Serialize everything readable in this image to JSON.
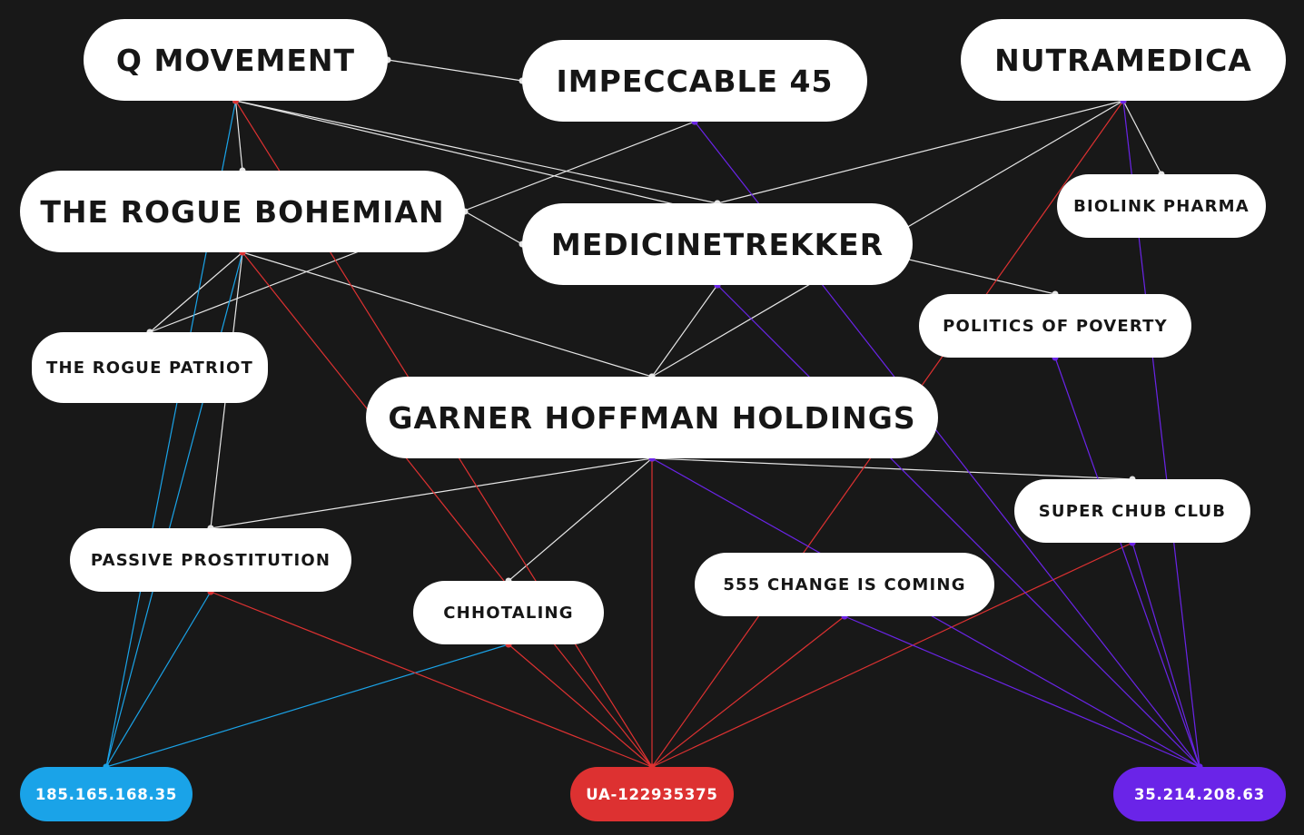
{
  "colors": {
    "background": "#181818",
    "node_fill": "#ffffff",
    "node_text": "#161616",
    "edge_white": "#e6e6e6",
    "ip_blue": "#1aa3e8",
    "analytics_red": "#dd3131",
    "ip_purple": "#6a24e8"
  },
  "nodes": [
    {
      "id": "q_movement",
      "label": "Q MOVEMENT"
    },
    {
      "id": "impeccable_45",
      "label": "IMPECCABLE 45"
    },
    {
      "id": "nutramedica",
      "label": "NUTRAMEDICA"
    },
    {
      "id": "rogue_bohemian",
      "label": "THE ROGUE BOHEMIAN"
    },
    {
      "id": "medicinetrekker",
      "label": "MEDICINETREKKER"
    },
    {
      "id": "biolink_pharma",
      "label": "BIOLINK PHARMA"
    },
    {
      "id": "politics_of_poverty",
      "label": "POLITICS OF POVERTY"
    },
    {
      "id": "rogue_patriot",
      "label": "THE ROGUE PATRIOT"
    },
    {
      "id": "garner_hoffman",
      "label": "GARNER HOFFMAN HOLDINGS"
    },
    {
      "id": "super_chub_club",
      "label": "SUPER CHUB CLUB"
    },
    {
      "id": "passive_prostitution",
      "label": "PASSIVE PROSTITUTION"
    },
    {
      "id": "chhotaling",
      "label": "CHHOTALING"
    },
    {
      "id": "change_is_coming",
      "label": "555 CHANGE IS COMING"
    },
    {
      "id": "ip_blue",
      "label": "185.165.168.35"
    },
    {
      "id": "ua_code",
      "label": "UA-122935375"
    },
    {
      "id": "ip_purple",
      "label": "35.214.208.63"
    }
  ],
  "edges": [
    {
      "from": "q_movement",
      "to": "impeccable_45",
      "kind": "white"
    },
    {
      "from": "q_movement",
      "to": "medicinetrekker",
      "kind": "white"
    },
    {
      "from": "q_movement",
      "to": "politics_of_poverty",
      "kind": "white"
    },
    {
      "from": "q_movement",
      "to": "rogue_bohemian",
      "kind": "white"
    },
    {
      "from": "rogue_bohemian",
      "to": "medicinetrekker",
      "kind": "white"
    },
    {
      "from": "rogue_bohemian",
      "to": "garner_hoffman",
      "kind": "white"
    },
    {
      "from": "rogue_bohemian",
      "to": "rogue_patriot",
      "kind": "white"
    },
    {
      "from": "rogue_bohemian",
      "to": "passive_prostitution",
      "kind": "white"
    },
    {
      "from": "impeccable_45",
      "to": "rogue_patriot",
      "kind": "white"
    },
    {
      "from": "nutramedica",
      "to": "medicinetrekker",
      "kind": "white"
    },
    {
      "from": "nutramedica",
      "to": "garner_hoffman",
      "kind": "white"
    },
    {
      "from": "nutramedica",
      "to": "biolink_pharma",
      "kind": "white"
    },
    {
      "from": "medicinetrekker",
      "to": "garner_hoffman",
      "kind": "white"
    },
    {
      "from": "garner_hoffman",
      "to": "passive_prostitution",
      "kind": "white"
    },
    {
      "from": "garner_hoffman",
      "to": "chhotaling",
      "kind": "white"
    },
    {
      "from": "garner_hoffman",
      "to": "super_chub_club",
      "kind": "white"
    },
    {
      "from": "q_movement",
      "to": "ip_blue",
      "kind": "blue"
    },
    {
      "from": "rogue_bohemian",
      "to": "ip_blue",
      "kind": "blue"
    },
    {
      "from": "passive_prostitution",
      "to": "ip_blue",
      "kind": "blue"
    },
    {
      "from": "chhotaling",
      "to": "ip_blue",
      "kind": "blue"
    },
    {
      "from": "q_movement",
      "to": "ua_code",
      "kind": "red"
    },
    {
      "from": "rogue_bohemian",
      "to": "ua_code",
      "kind": "red"
    },
    {
      "from": "nutramedica",
      "to": "ua_code",
      "kind": "red"
    },
    {
      "from": "garner_hoffman",
      "to": "ua_code",
      "kind": "red"
    },
    {
      "from": "passive_prostitution",
      "to": "ua_code",
      "kind": "red"
    },
    {
      "from": "chhotaling",
      "to": "ua_code",
      "kind": "red"
    },
    {
      "from": "change_is_coming",
      "to": "ua_code",
      "kind": "red"
    },
    {
      "from": "super_chub_club",
      "to": "ua_code",
      "kind": "red"
    },
    {
      "from": "impeccable_45",
      "to": "ip_purple",
      "kind": "purple"
    },
    {
      "from": "nutramedica",
      "to": "ip_purple",
      "kind": "purple"
    },
    {
      "from": "medicinetrekker",
      "to": "ip_purple",
      "kind": "purple"
    },
    {
      "from": "politics_of_poverty",
      "to": "ip_purple",
      "kind": "purple"
    },
    {
      "from": "garner_hoffman",
      "to": "ip_purple",
      "kind": "purple"
    },
    {
      "from": "change_is_coming",
      "to": "ip_purple",
      "kind": "purple"
    },
    {
      "from": "super_chub_club",
      "to": "ip_purple",
      "kind": "purple"
    }
  ]
}
